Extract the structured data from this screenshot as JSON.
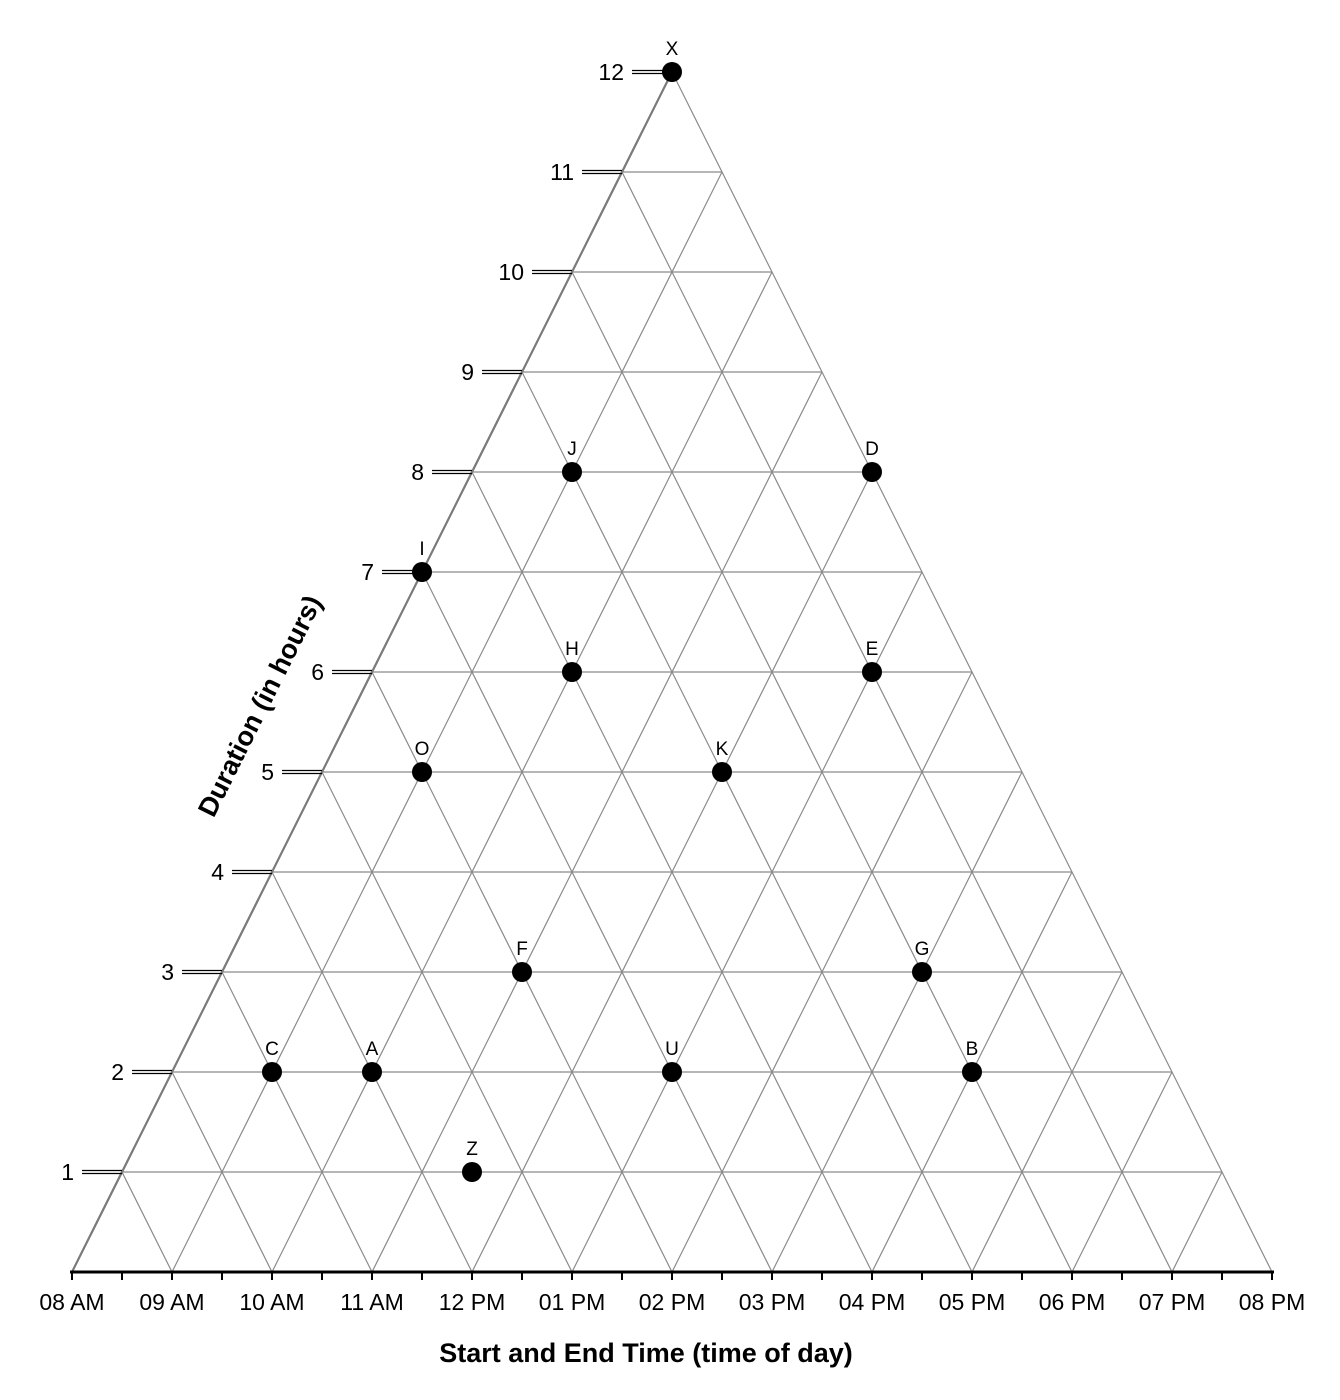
{
  "chart_data": {
    "type": "scatter",
    "title": "",
    "xlabel": "Start and End Time (time of day)",
    "ylabel": "Duration (in hours)",
    "x_ticks": [
      "08 AM",
      "09 AM",
      "10 AM",
      "11 AM",
      "12 PM",
      "01 PM",
      "02 PM",
      "03 PM",
      "04 PM",
      "05 PM",
      "06 PM",
      "07 PM",
      "08 PM"
    ],
    "y_ticks": [
      "1",
      "2",
      "3",
      "4",
      "5",
      "6",
      "7",
      "8",
      "9",
      "10",
      "11",
      "12"
    ],
    "x_range": [
      8,
      20
    ],
    "y_range": [
      0,
      12
    ],
    "grid": true,
    "points": [
      {
        "label": "X",
        "start": 8,
        "duration": 12
      },
      {
        "label": "J",
        "start": 9,
        "duration": 8
      },
      {
        "label": "D",
        "start": 12,
        "duration": 8
      },
      {
        "label": "I",
        "start": 8,
        "duration": 7
      },
      {
        "label": "H",
        "start": 10,
        "duration": 6
      },
      {
        "label": "E",
        "start": 13,
        "duration": 6
      },
      {
        "label": "O",
        "start": 9,
        "duration": 5
      },
      {
        "label": "K",
        "start": 12,
        "duration": 5
      },
      {
        "label": "F",
        "start": 11,
        "duration": 3
      },
      {
        "label": "G",
        "start": 15,
        "duration": 3
      },
      {
        "label": "C",
        "start": 9,
        "duration": 2
      },
      {
        "label": "A",
        "start": 10,
        "duration": 2
      },
      {
        "label": "U",
        "start": 13,
        "duration": 2
      },
      {
        "label": "B",
        "start": 16,
        "duration": 2
      },
      {
        "label": "Z",
        "start": 11.5,
        "duration": 1
      }
    ]
  }
}
